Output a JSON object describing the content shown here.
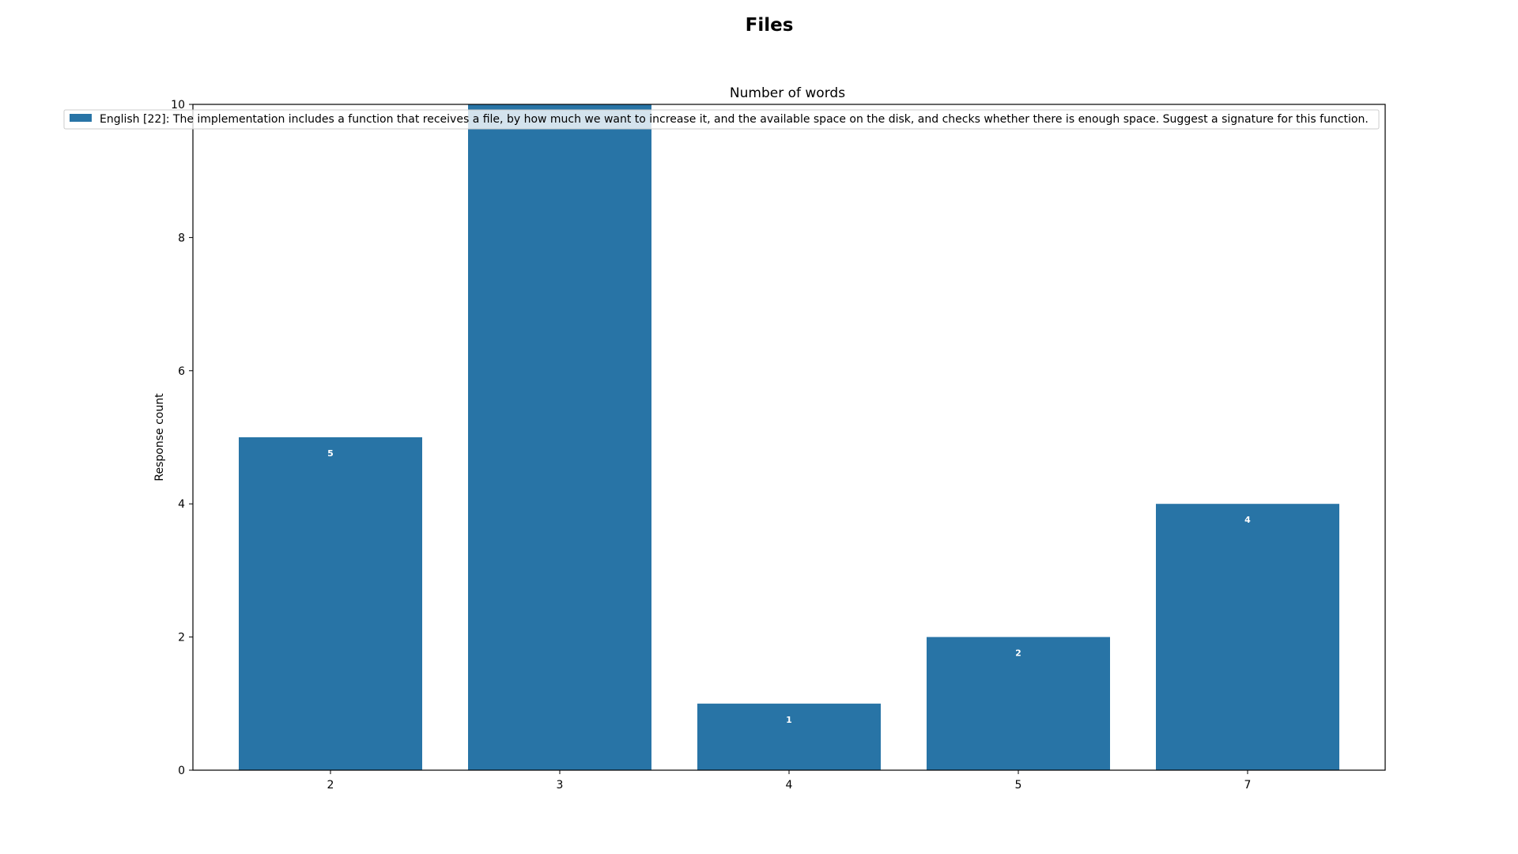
{
  "figure": {
    "title": "Files"
  },
  "chart_data": {
    "type": "bar",
    "title": "Number of words",
    "xlabel": "",
    "ylabel": "Response count",
    "categories": [
      "2",
      "3",
      "4",
      "5",
      "7"
    ],
    "series": [
      {
        "name": "English [22]: The implementation includes a function that receives a file, by how much we want to increase it, and the available space on the disk, and checks whether there is enough space. Suggest a signature for this function.",
        "values": [
          5,
          10,
          1,
          2,
          4
        ],
        "color": "#2874a6"
      }
    ],
    "data_labels": [
      "5",
      "",
      "1",
      "2",
      "4"
    ],
    "ylim": [
      0,
      10
    ],
    "yticks": [
      0,
      2,
      4,
      6,
      8,
      10
    ],
    "grid": false,
    "legend_placement": "top-left"
  }
}
